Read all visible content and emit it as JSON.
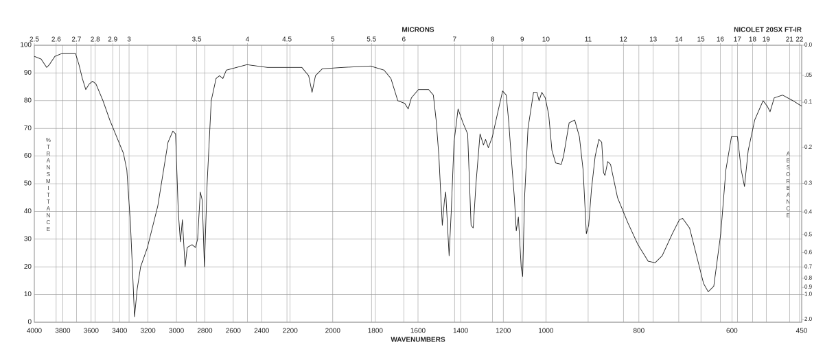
{
  "chart_data": {
    "type": "line",
    "title": "NICOLET 20SX FT-IR",
    "xlabel": "WAVENUMBERS",
    "x2label": "MICRONS",
    "ylabel": "%TRANSMITTANCE",
    "y2label": "ABSORBANCE",
    "color": "#222222",
    "grid": true,
    "xlim": [
      4000,
      450
    ],
    "xbreaks": [
      2200,
      1000
    ],
    "xticks": [
      4000,
      3800,
      3600,
      3400,
      3200,
      3000,
      2800,
      2600,
      2400,
      2200,
      2000,
      1800,
      1600,
      1400,
      1200,
      1000,
      800,
      600,
      450
    ],
    "x2ticks": [
      2.5,
      2.6,
      2.7,
      2.8,
      2.9,
      3,
      3.5,
      4,
      4.5,
      5,
      5.5,
      6,
      7,
      8,
      9,
      10,
      11,
      12,
      13,
      14,
      15,
      16,
      17,
      18,
      19,
      21,
      22
    ],
    "ylim": [
      0,
      100
    ],
    "yticks": [
      0,
      10,
      20,
      30,
      40,
      50,
      60,
      70,
      80,
      90,
      100
    ],
    "y2ticks": [
      {
        "value": 0,
        "label": "0.0"
      },
      {
        "value": 0.05,
        "label": ".05"
      },
      {
        "value": 0.1,
        "label": "0.1"
      },
      {
        "value": 0.2,
        "label": "0.2"
      },
      {
        "value": 0.3,
        "label": "0.3"
      },
      {
        "value": 0.4,
        "label": "0.4"
      },
      {
        "value": 0.5,
        "label": "0.5"
      },
      {
        "value": 0.6,
        "label": "0.6"
      },
      {
        "value": 0.7,
        "label": "0.7"
      },
      {
        "value": 0.8,
        "label": "0.8"
      },
      {
        "value": 0.9,
        "label": "0.9"
      },
      {
        "value": 1,
        "label": "1.0"
      },
      {
        "value": 2,
        "label": "2.0"
      }
    ],
    "x": [
      4000,
      3952,
      3913,
      3894,
      3855,
      3807,
      3759,
      3710,
      3686,
      3662,
      3638,
      3614,
      3590,
      3566,
      3517,
      3469,
      3421,
      3373,
      3349,
      3324,
      3310,
      3295,
      3276,
      3252,
      3204,
      3131,
      3059,
      3025,
      3006,
      2987,
      2972,
      2958,
      2939,
      2924,
      2890,
      2866,
      2851,
      2832,
      2818,
      2803,
      2784,
      2755,
      2721,
      2697,
      2673,
      2649,
      2576,
      2504,
      2359,
      2214,
      2145,
      2113,
      2097,
      2081,
      2049,
      1952,
      1823,
      1759,
      1727,
      1695,
      1662,
      1646,
      1631,
      1598,
      1550,
      1528,
      1515,
      1502,
      1486,
      1476,
      1470,
      1454,
      1444,
      1431,
      1412,
      1389,
      1367,
      1351,
      1341,
      1328,
      1309,
      1293,
      1283,
      1270,
      1251,
      1228,
      1203,
      1186,
      1174,
      1161,
      1148,
      1139,
      1129,
      1116,
      1109,
      1100,
      1084,
      1058,
      1042,
      1032,
      1019,
      1003,
      994,
      987,
      979,
      967,
      962,
      950,
      938,
      928,
      920,
      913,
      908,
      902,
      894,
      886,
      880,
      876,
      873,
      867,
      861,
      846,
      824,
      802,
      780,
      765,
      750,
      728,
      713,
      706,
      691,
      676,
      661,
      651,
      639,
      624,
      613,
      601,
      588,
      580,
      573,
      565,
      551,
      533,
      524,
      518,
      509,
      491,
      469,
      450
    ],
    "values": [
      96,
      95,
      92,
      93,
      96,
      97,
      97,
      97,
      93,
      88,
      84,
      86,
      87,
      86,
      80,
      73,
      67,
      61,
      55,
      36,
      20,
      2,
      12,
      20,
      27,
      42,
      65,
      69,
      68,
      40,
      29,
      37,
      20,
      27,
      28,
      27,
      30,
      47,
      44,
      20,
      50,
      80,
      88,
      89,
      88,
      91,
      92,
      93,
      92,
      92,
      92,
      89,
      83,
      89,
      91.5,
      92,
      92.5,
      91,
      88,
      80,
      79,
      77,
      81,
      84,
      84,
      82,
      73,
      60,
      35,
      44,
      47,
      24,
      40,
      65,
      77,
      72,
      68,
      35,
      34,
      50,
      68,
      64,
      66,
      63,
      67,
      75,
      83.5,
      82,
      72,
      58,
      45,
      33,
      38,
      20,
      16.5,
      45,
      70,
      83,
      83,
      80,
      83,
      81,
      75,
      62,
      57.5,
      57,
      60,
      72,
      73,
      67,
      55,
      32,
      35,
      48,
      60,
      66,
      65,
      54,
      53,
      58,
      57,
      45,
      36,
      28,
      22,
      21.5,
      24,
      32,
      37,
      37.5,
      34,
      24,
      14,
      11,
      13,
      32,
      55,
      67,
      67,
      55,
      49,
      62,
      73,
      80,
      78,
      76,
      81,
      82,
      80,
      78
    ]
  }
}
